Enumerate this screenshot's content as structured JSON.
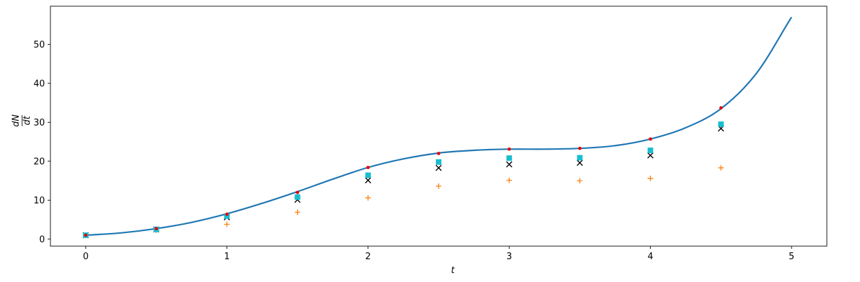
{
  "chart_data": {
    "type": "line",
    "title": "",
    "xlabel": "t",
    "ylabel_numerator": "dN",
    "ylabel_denominator": "dt",
    "xlim": [
      -0.25,
      5.25
    ],
    "ylim": [
      -1.8,
      59.8
    ],
    "xticks": [
      0,
      1,
      2,
      3,
      4,
      5
    ],
    "yticks": [
      0,
      10,
      20,
      30,
      40,
      50
    ],
    "grid": false,
    "legend": "none",
    "series": [
      {
        "type": "line",
        "color": "#1f77b4",
        "x": [
          0,
          0.25,
          0.5,
          0.75,
          1.0,
          1.25,
          1.5,
          1.75,
          2.0,
          2.25,
          2.5,
          2.75,
          3.0,
          3.25,
          3.5,
          3.75,
          4.0,
          4.25,
          4.5,
          4.75,
          5.0
        ],
        "y": [
          1.0,
          1.6,
          2.7,
          4.3,
          6.5,
          9.2,
          12.2,
          15.4,
          18.4,
          20.6,
          22.1,
          22.8,
          23.1,
          23.1,
          23.3,
          24.0,
          25.7,
          28.6,
          33.5,
          42.5,
          57.0
        ]
      },
      {
        "type": "scatter",
        "marker": "dot",
        "color": "#e8000b",
        "x": [
          0,
          0.5,
          1,
          1.5,
          2,
          2.5,
          3,
          3.5,
          4,
          4.5
        ],
        "y": [
          1.0,
          2.7,
          6.4,
          12.0,
          18.4,
          22.0,
          23.1,
          23.3,
          25.7,
          33.7
        ]
      },
      {
        "type": "scatter",
        "marker": "square",
        "color": "#17becf",
        "x": [
          0,
          0.5,
          1,
          1.5,
          2,
          2.5,
          3,
          3.5,
          4,
          4.5
        ],
        "y": [
          1.0,
          2.5,
          5.9,
          10.8,
          16.4,
          19.8,
          20.8,
          20.9,
          22.8,
          29.5
        ]
      },
      {
        "type": "scatter",
        "marker": "x",
        "color": "#000000",
        "x": [
          0,
          0.5,
          1,
          1.5,
          2,
          2.5,
          3,
          3.5,
          4,
          4.5
        ],
        "y": [
          1.0,
          2.5,
          5.6,
          10.1,
          15.1,
          18.3,
          19.2,
          19.6,
          21.5,
          28.4
        ]
      },
      {
        "type": "scatter",
        "marker": "plus",
        "color": "#ff7f0e",
        "x": [
          0,
          0.5,
          1,
          1.5,
          2,
          2.5,
          3,
          3.5,
          4,
          4.5
        ],
        "y": [
          1.0,
          2.3,
          3.8,
          6.9,
          10.6,
          13.6,
          15.1,
          15.0,
          15.6,
          18.3
        ]
      }
    ]
  }
}
